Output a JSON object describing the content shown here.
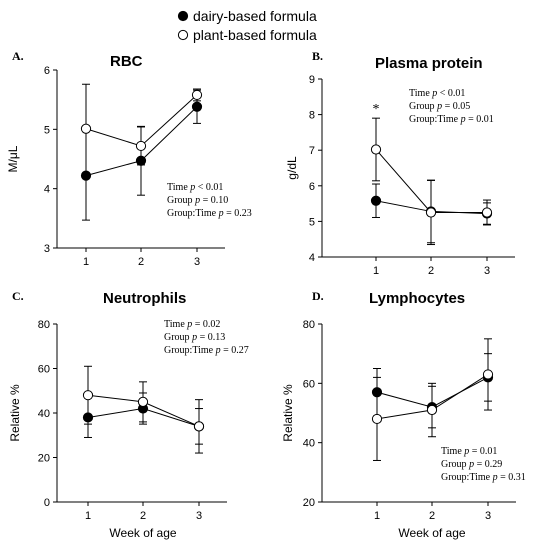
{
  "legend": [
    {
      "label": "dairy-based formula",
      "marker": "filled"
    },
    {
      "label": "plant-based formula",
      "marker": "open"
    }
  ],
  "x_axis_title": "Week of age",
  "chart_data": [
    {
      "id": "rbc",
      "type": "line",
      "letter": "A.",
      "title": "RBC",
      "ylabel": "M/μL",
      "xlabel": "",
      "x": [
        1,
        2,
        3
      ],
      "ylim": [
        3,
        6
      ],
      "yticks": [
        3,
        4,
        5,
        6
      ],
      "series": [
        {
          "name": "dairy-based formula",
          "marker": "filled",
          "values": [
            4.22,
            4.47,
            5.38
          ],
          "err": [
            0.75,
            0.58,
            0.28
          ]
        },
        {
          "name": "plant-based formula",
          "marker": "open",
          "values": [
            5.01,
            4.72,
            5.58
          ],
          "err": [
            0.75,
            0.32,
            0.1
          ]
        }
      ],
      "stats": [
        {
          "label": "Time",
          "p": "p",
          "op": "<",
          "value": "0.01"
        },
        {
          "label": "Group",
          "p": "p",
          "op": "=",
          "value": "0.10"
        },
        {
          "label": "Group:Time",
          "p": "p",
          "op": "=",
          "value": "0.23"
        }
      ],
      "annotations": []
    },
    {
      "id": "plasma-protein",
      "type": "line",
      "letter": "B.",
      "title": "Plasma protein",
      "ylabel": "g/dL",
      "xlabel": "",
      "x": [
        1,
        2,
        3
      ],
      "ylim": [
        4,
        9
      ],
      "yticks": [
        4,
        5,
        6,
        7,
        8,
        9
      ],
      "series": [
        {
          "name": "dairy-based formula",
          "marker": "filled",
          "values": [
            5.58,
            5.28,
            5.22
          ],
          "err": [
            0.47,
            0.88,
            0.3
          ]
        },
        {
          "name": "plant-based formula",
          "marker": "open",
          "values": [
            7.02,
            5.25,
            5.25
          ],
          "err": [
            0.88,
            0.9,
            0.35
          ]
        }
      ],
      "stats": [
        {
          "label": "Time",
          "p": "p",
          "op": "<",
          "value": "0.01"
        },
        {
          "label": "Group",
          "p": "p",
          "op": "=",
          "value": "0.05"
        },
        {
          "label": "Group:Time",
          "p": "p",
          "op": "=",
          "value": "0.01"
        }
      ],
      "annotations": [
        {
          "text": "*",
          "x": 1,
          "y": 8.1
        }
      ]
    },
    {
      "id": "neutrophils",
      "type": "line",
      "letter": "C.",
      "title": "Neutrophils",
      "ylabel": "Relative %",
      "xlabel": "",
      "x": [
        1,
        2,
        3
      ],
      "ylim": [
        0,
        80
      ],
      "yticks": [
        0,
        20,
        40,
        60,
        80
      ],
      "series": [
        {
          "name": "dairy-based formula",
          "marker": "filled",
          "values": [
            38,
            42,
            34
          ],
          "err": [
            9,
            7,
            8
          ]
        },
        {
          "name": "plant-based formula",
          "marker": "open",
          "values": [
            48,
            45,
            34
          ],
          "err": [
            13,
            9,
            12
          ]
        }
      ],
      "stats": [
        {
          "label": "Time",
          "p": "p",
          "op": "=",
          "value": "0.02"
        },
        {
          "label": "Group",
          "p": "p",
          "op": "=",
          "value": "0.13"
        },
        {
          "label": "Group:Time",
          "p": "p",
          "op": "=",
          "value": "0.27"
        }
      ],
      "annotations": []
    },
    {
      "id": "lymphocytes",
      "type": "line",
      "letter": "D.",
      "title": "Lymphocytes",
      "ylabel": "Relative %",
      "xlabel": "",
      "x": [
        1,
        2,
        3
      ],
      "ylim": [
        20,
        80
      ],
      "yticks": [
        20,
        40,
        60,
        80
      ],
      "series": [
        {
          "name": "dairy-based formula",
          "marker": "filled",
          "values": [
            57,
            52,
            62
          ],
          "err": [
            8,
            7,
            8
          ]
        },
        {
          "name": "plant-based formula",
          "marker": "open",
          "values": [
            48,
            51,
            63
          ],
          "err": [
            14,
            9,
            12
          ]
        }
      ],
      "stats": [
        {
          "label": "Time",
          "p": "p",
          "op": "=",
          "value": "0.01"
        },
        {
          "label": "Group",
          "p": "p",
          "op": "=",
          "value": "0.29"
        },
        {
          "label": "Group:Time",
          "p": "p",
          "op": "=",
          "value": "0.31"
        }
      ],
      "annotations": []
    }
  ]
}
